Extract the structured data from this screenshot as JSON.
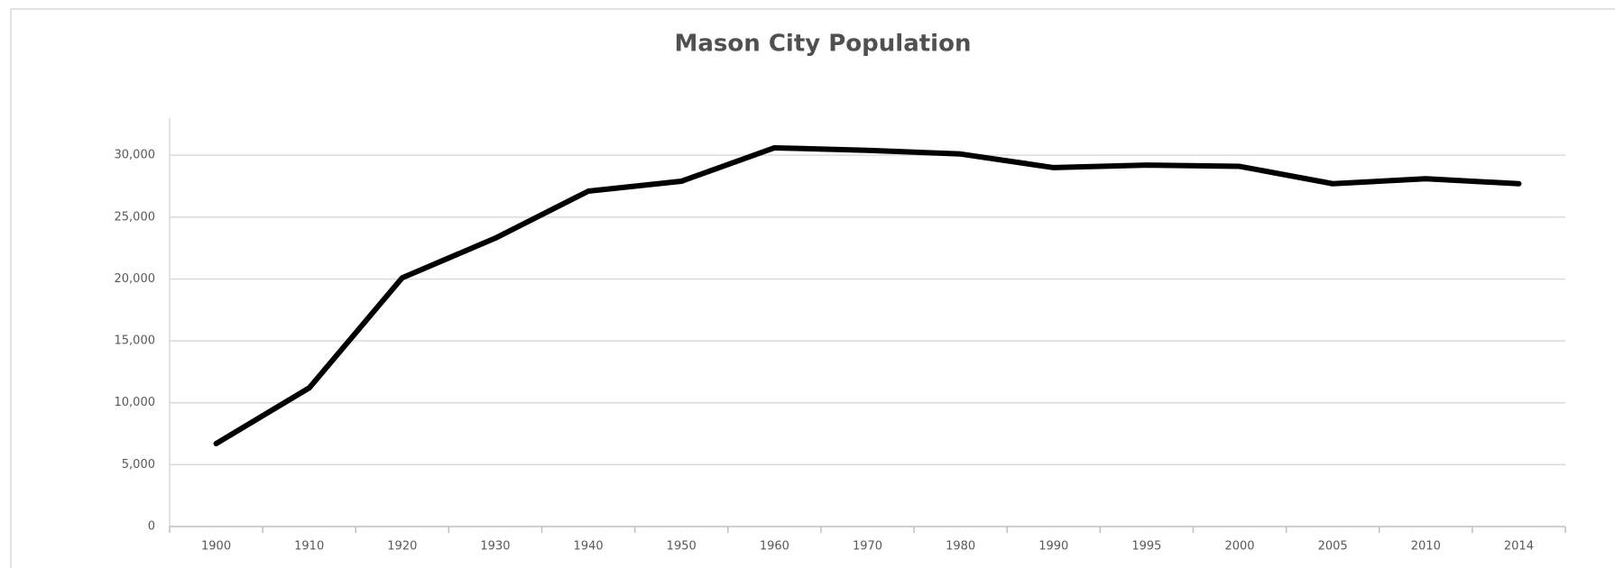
{
  "chart_data": {
    "type": "line",
    "title": "Mason City Population",
    "categories": [
      "1900",
      "1910",
      "1920",
      "1930",
      "1940",
      "1950",
      "1960",
      "1970",
      "1980",
      "1990",
      "1995",
      "2000",
      "2005",
      "2010",
      "2014"
    ],
    "series": [
      {
        "name": "Population",
        "color": "#000000",
        "values": [
          6700,
          11200,
          20100,
          23300,
          27100,
          27900,
          30600,
          30400,
          30100,
          29000,
          29200,
          29100,
          27700,
          28100,
          27700
        ]
      }
    ],
    "ylim": [
      0,
      33000
    ],
    "yticks": [
      0,
      {
        "value": 5000,
        "label": "5,000"
      },
      {
        "value": 10000,
        "label": "10,000"
      },
      {
        "value": 15000,
        "label": "15,000"
      },
      {
        "value": 20000,
        "label": "20,000"
      },
      {
        "value": 25000,
        "label": "25,000"
      },
      {
        "value": 30000,
        "label": "30,000"
      }
    ],
    "grid": true,
    "legend": false
  }
}
